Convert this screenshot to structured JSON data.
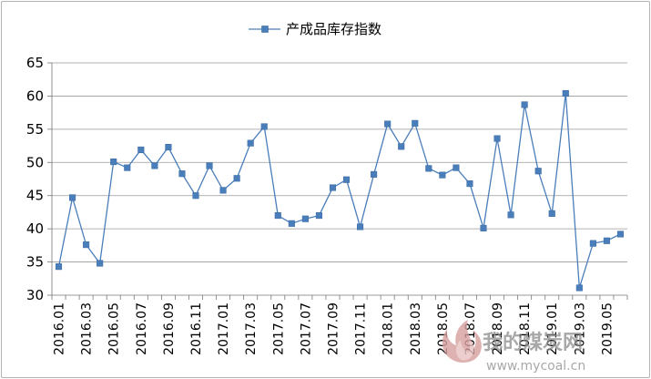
{
  "chart_data": {
    "type": "line",
    "title": "",
    "xlabel": "",
    "ylabel": "",
    "ylim": [
      30,
      65
    ],
    "yticks": [
      30,
      35,
      40,
      45,
      50,
      55,
      60,
      65
    ],
    "grid": "horizontal",
    "legend_position": "top-center",
    "x": [
      "2016.01",
      "2016.02",
      "2016.03",
      "2016.04",
      "2016.05",
      "2016.06",
      "2016.07",
      "2016.08",
      "2016.09",
      "2016.10",
      "2016.11",
      "2016.12",
      "2017.01",
      "2017.02",
      "2017.03",
      "2017.04",
      "2017.05",
      "2017.06",
      "2017.07",
      "2017.08",
      "2017.09",
      "2017.10",
      "2017.11",
      "2017.12",
      "2018.01",
      "2018.02",
      "2018.03",
      "2018.04",
      "2018.05",
      "2018.06",
      "2018.07",
      "2018.08",
      "2018.09",
      "2018.10",
      "2018.11",
      "2018.12",
      "2019.01",
      "2019.02",
      "2019.03",
      "2019.04",
      "2019.05",
      "2019.06"
    ],
    "x_tick_labels": [
      "2016.01",
      "2016.03",
      "2016.05",
      "2016.07",
      "2016.09",
      "2016.11",
      "2017.01",
      "2017.03",
      "2017.05",
      "2017.07",
      "2017.09",
      "2017.11",
      "2018.01",
      "2018.03",
      "2018.05",
      "2018.07",
      "2018.09",
      "2018.11",
      "2019.01",
      "2019.03",
      "2019.05"
    ],
    "series": [
      {
        "name": "产成品库存指数",
        "color": "#4a7ebb",
        "values": [
          34.3,
          44.7,
          37.6,
          34.8,
          50.1,
          49.2,
          51.9,
          49.5,
          52.3,
          48.3,
          45.0,
          49.5,
          45.8,
          47.6,
          52.9,
          55.4,
          42.0,
          40.8,
          41.5,
          42.0,
          46.2,
          47.4,
          40.3,
          48.2,
          55.8,
          52.4,
          55.9,
          49.1,
          48.1,
          49.2,
          46.8,
          40.1,
          53.6,
          42.1,
          58.7,
          48.7,
          42.3,
          60.4,
          31.1,
          37.8,
          38.2,
          39.2
        ]
      }
    ]
  },
  "watermark": {
    "brand": "我的煤炭网",
    "url": "www.mycoal.cn"
  }
}
